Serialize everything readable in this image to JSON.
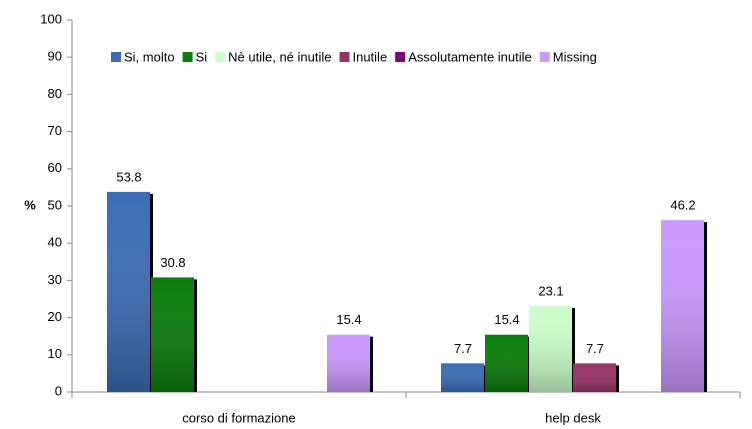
{
  "chart_data": {
    "type": "bar",
    "y_label": "%",
    "categories": [
      "corso di formazione",
      "help desk"
    ],
    "series": [
      {
        "name": "Si, molto",
        "color": "#3a6db5",
        "values": [
          53.8,
          7.7
        ]
      },
      {
        "name": "Si",
        "color": "#0a7d0a",
        "values": [
          30.8,
          15.4
        ]
      },
      {
        "name": "Nè utile, né inutile",
        "color": "#ccffcc",
        "values": [
          null,
          23.1
        ]
      },
      {
        "name": "Inutile",
        "color": "#993366",
        "values": [
          null,
          7.7
        ]
      },
      {
        "name": "Assolutamente inutile",
        "color": "#800080",
        "values": [
          null,
          null
        ]
      },
      {
        "name": "Missing",
        "color": "#cc99ff",
        "values": [
          15.4,
          46.2
        ]
      }
    ],
    "ylim": [
      0,
      100
    ],
    "yticks": [
      0,
      10,
      20,
      30,
      40,
      50,
      60,
      70,
      80,
      90,
      100
    ],
    "grid": false,
    "legend": "top"
  }
}
